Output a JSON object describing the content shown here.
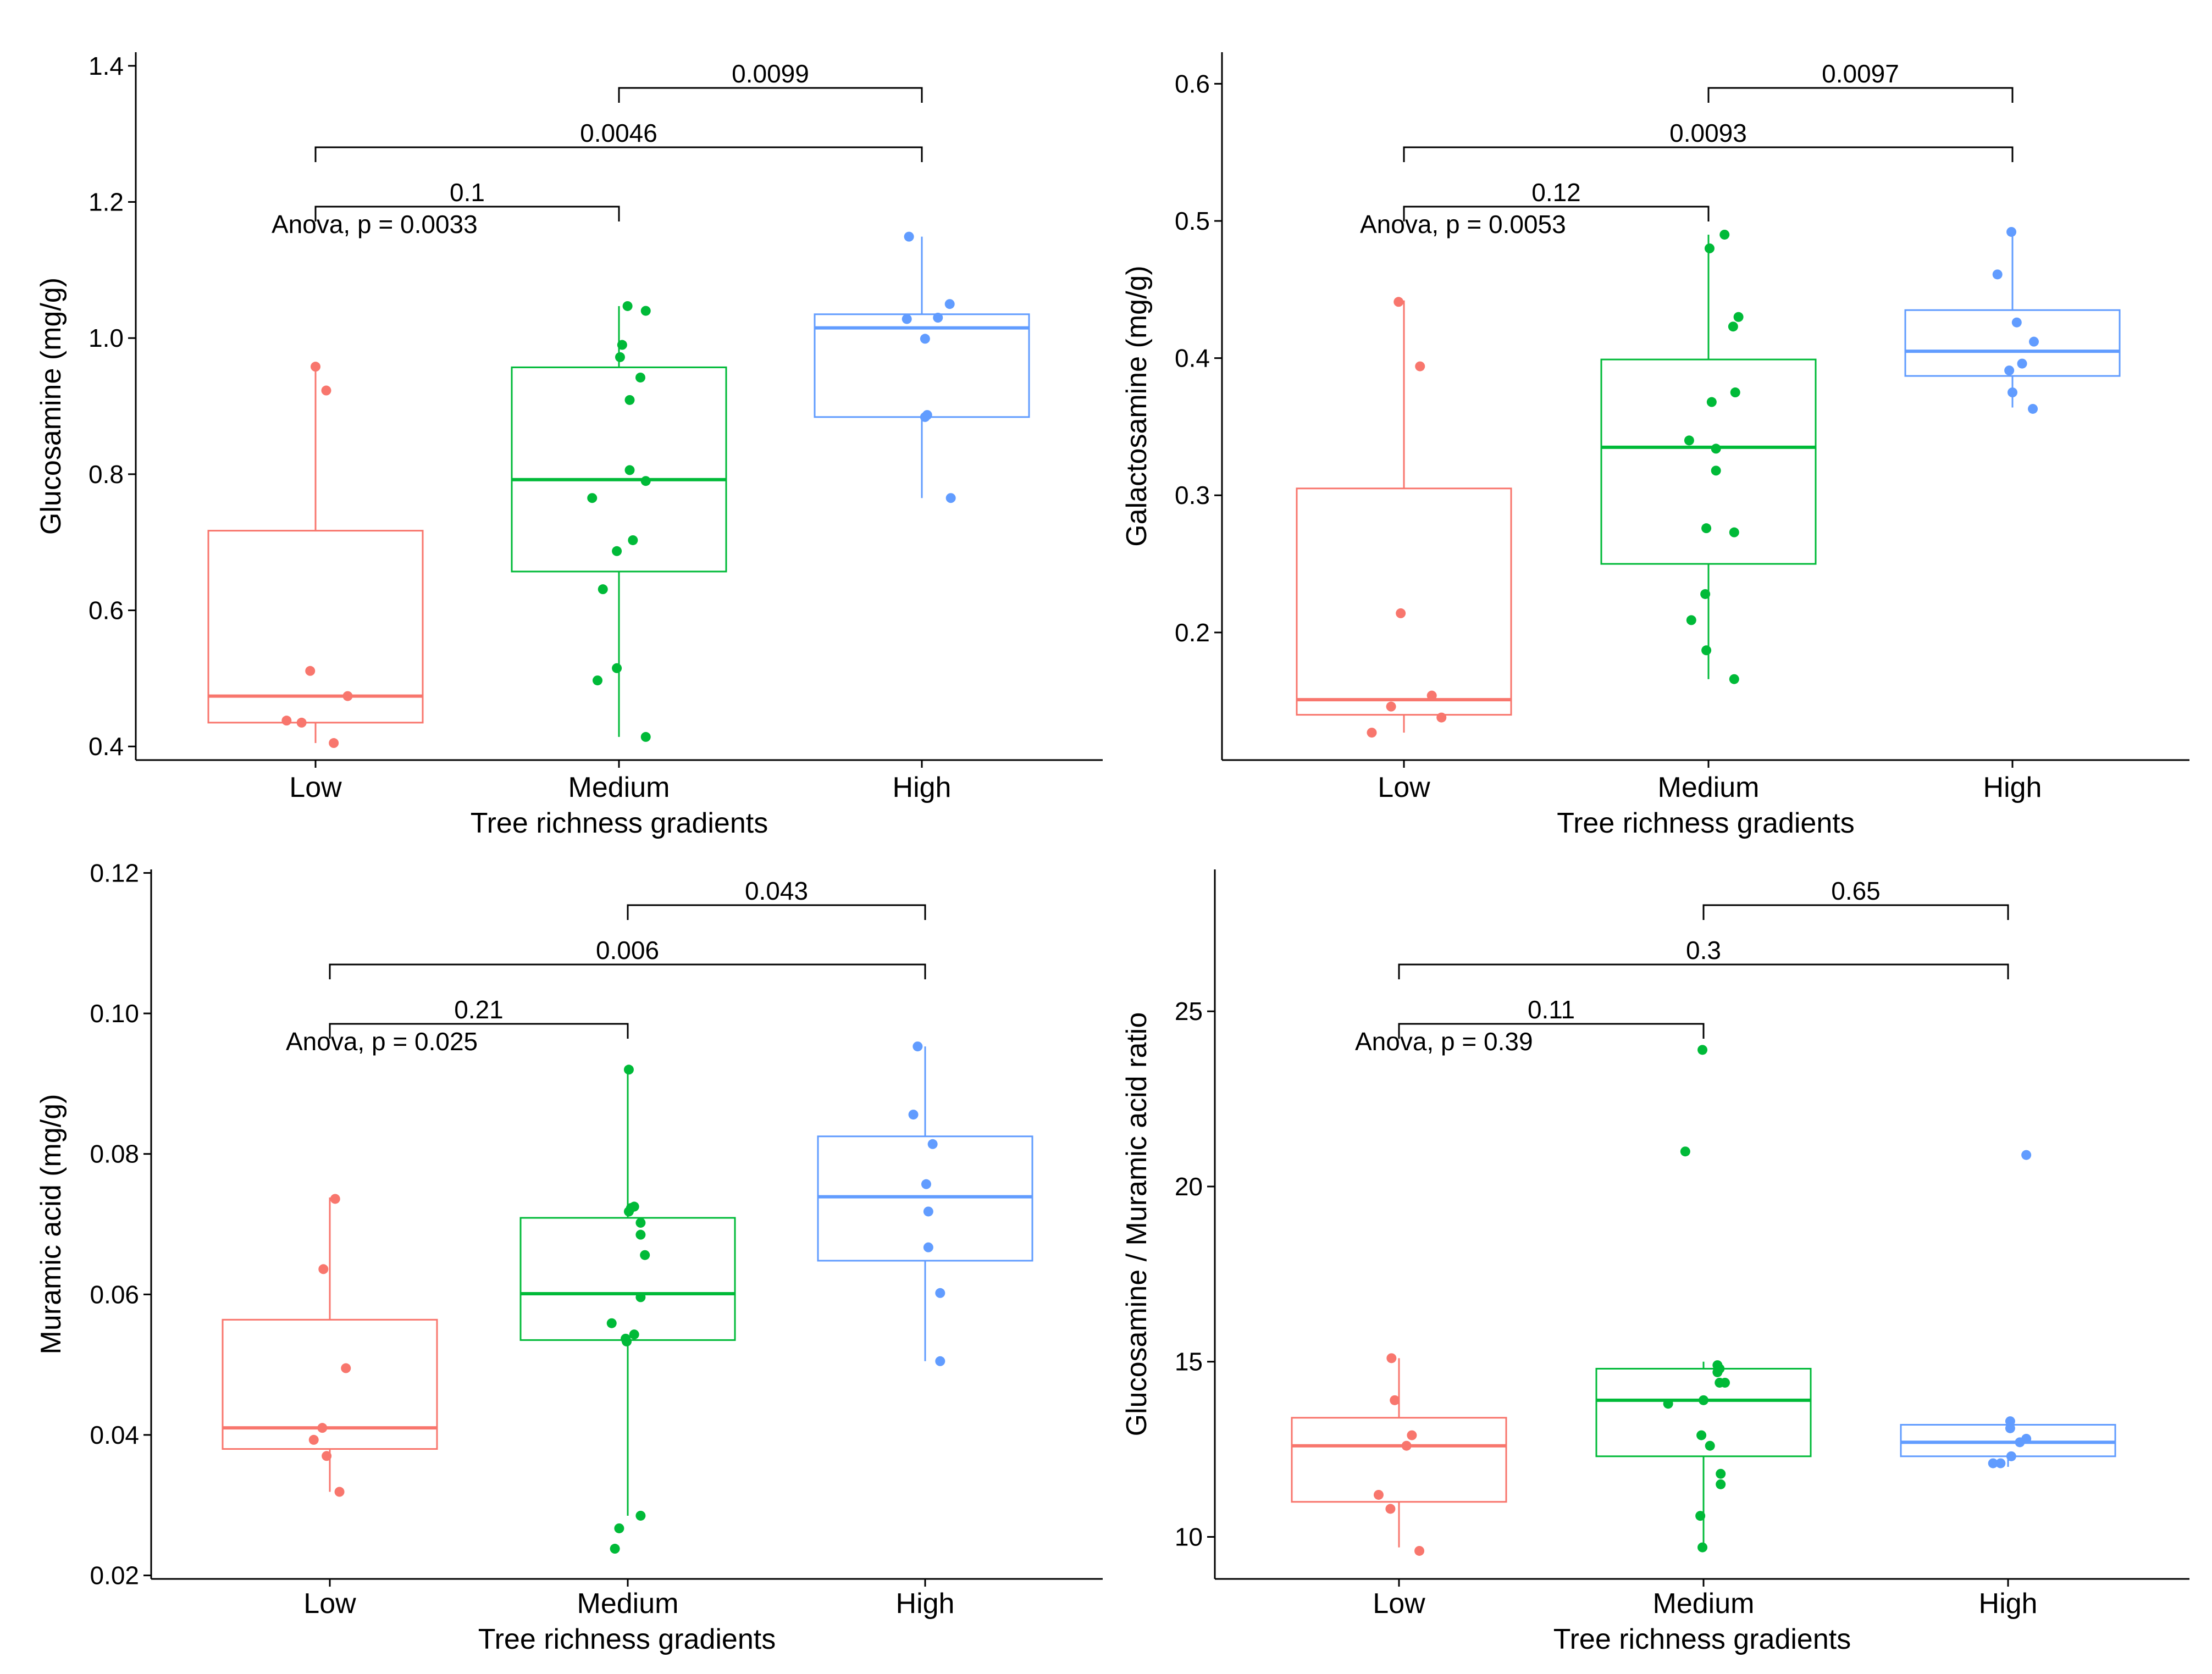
{
  "colors": {
    "Low": "#F8766D",
    "Medium": "#00BA38",
    "High": "#619CFF"
  },
  "chart_data": [
    {
      "id": "glucosamine",
      "type": "box",
      "ylabel": "Glucosamine (mg/g)",
      "xlabel": "Tree richness gradients",
      "categories": [
        "Low",
        "Medium",
        "High"
      ],
      "ylim": [
        0.38,
        1.42
      ],
      "yticks": [
        0.4,
        0.6,
        0.8,
        1.0,
        1.2,
        1.4
      ],
      "ytick_labels": [
        "0.4",
        "0.6",
        "0.8",
        "1.0",
        "1.2",
        "1.4"
      ],
      "anova": "Anova, p = 0.0033",
      "boxes": [
        {
          "group": "Low",
          "whisker_low": 0.405,
          "q1": 0.435,
          "median": 0.474,
          "q3": 0.717,
          "whisker_high": 0.958
        },
        {
          "group": "Medium",
          "whisker_low": 0.414,
          "q1": 0.657,
          "median": 0.792,
          "q3": 0.957,
          "whisker_high": 1.047
        },
        {
          "group": "High",
          "whisker_low": 0.765,
          "q1": 0.884,
          "median": 1.015,
          "q3": 1.035,
          "whisker_high": 1.149
        }
      ],
      "points": [
        {
          "group": "Low",
          "jitter": 0.0,
          "y": 0.958
        },
        {
          "group": "Low",
          "jitter": 0.1,
          "y": 0.923
        },
        {
          "group": "Low",
          "jitter": -0.05,
          "y": 0.511
        },
        {
          "group": "Low",
          "jitter": 0.3,
          "y": 0.474
        },
        {
          "group": "Low",
          "jitter": -0.27,
          "y": 0.438
        },
        {
          "group": "Low",
          "jitter": -0.13,
          "y": 0.435
        },
        {
          "group": "Low",
          "jitter": 0.17,
          "y": 0.405
        },
        {
          "group": "Medium",
          "jitter": 0.08,
          "y": 1.047
        },
        {
          "group": "Medium",
          "jitter": 0.25,
          "y": 1.04
        },
        {
          "group": "Medium",
          "jitter": 0.03,
          "y": 0.99
        },
        {
          "group": "Medium",
          "jitter": 0.01,
          "y": 0.972
        },
        {
          "group": "Medium",
          "jitter": 0.2,
          "y": 0.942
        },
        {
          "group": "Medium",
          "jitter": 0.1,
          "y": 0.909
        },
        {
          "group": "Medium",
          "jitter": 0.1,
          "y": 0.806
        },
        {
          "group": "Medium",
          "jitter": 0.25,
          "y": 0.79
        },
        {
          "group": "Medium",
          "jitter": -0.25,
          "y": 0.765
        },
        {
          "group": "Medium",
          "jitter": 0.13,
          "y": 0.703
        },
        {
          "group": "Medium",
          "jitter": -0.02,
          "y": 0.687
        },
        {
          "group": "Medium",
          "jitter": -0.15,
          "y": 0.631
        },
        {
          "group": "Medium",
          "jitter": -0.02,
          "y": 0.515
        },
        {
          "group": "Medium",
          "jitter": -0.2,
          "y": 0.497
        },
        {
          "group": "Medium",
          "jitter": 0.25,
          "y": 0.414
        },
        {
          "group": "High",
          "jitter": -0.12,
          "y": 1.149
        },
        {
          "group": "High",
          "jitter": 0.26,
          "y": 1.05
        },
        {
          "group": "High",
          "jitter": 0.15,
          "y": 1.03
        },
        {
          "group": "High",
          "jitter": -0.14,
          "y": 1.028
        },
        {
          "group": "High",
          "jitter": 0.03,
          "y": 0.999
        },
        {
          "group": "High",
          "jitter": 0.05,
          "y": 0.887
        },
        {
          "group": "High",
          "jitter": 0.03,
          "y": 0.884
        },
        {
          "group": "High",
          "jitter": 0.27,
          "y": 0.765
        }
      ],
      "comparisons": [
        {
          "from": "Low",
          "to": "Medium",
          "label": "0.1",
          "level": 1
        },
        {
          "from": "Low",
          "to": "High",
          "label": "0.0046",
          "level": 2
        },
        {
          "from": "Medium",
          "to": "High",
          "label": "0.0099",
          "level": 3
        }
      ]
    },
    {
      "id": "galactosamine",
      "type": "box",
      "ylabel": "Galactosamine (mg/g)",
      "xlabel": "Tree richness gradients",
      "categories": [
        "Low",
        "Medium",
        "High"
      ],
      "ylim": [
        0.107,
        0.623
      ],
      "yticks": [
        0.2,
        0.3,
        0.4,
        0.5,
        0.6
      ],
      "ytick_labels": [
        "0.2",
        "0.3",
        "0.4",
        "0.5",
        "0.6"
      ],
      "anova": "Anova, p = 0.0053",
      "boxes": [
        {
          "group": "Low",
          "whisker_low": 0.127,
          "q1": 0.14,
          "median": 0.151,
          "q3": 0.305,
          "whisker_high": 0.442
        },
        {
          "group": "Medium",
          "whisker_low": 0.166,
          "q1": 0.25,
          "median": 0.335,
          "q3": 0.399,
          "whisker_high": 0.49
        },
        {
          "group": "High",
          "whisker_low": 0.364,
          "q1": 0.387,
          "median": 0.405,
          "q3": 0.435,
          "whisker_high": 0.492
        }
      ],
      "points": [
        {
          "group": "Low",
          "jitter": -0.05,
          "y": 0.441
        },
        {
          "group": "Low",
          "jitter": 0.15,
          "y": 0.394
        },
        {
          "group": "Low",
          "jitter": -0.03,
          "y": 0.214
        },
        {
          "group": "Low",
          "jitter": 0.26,
          "y": 0.154
        },
        {
          "group": "Low",
          "jitter": -0.12,
          "y": 0.146
        },
        {
          "group": "Low",
          "jitter": 0.35,
          "y": 0.138
        },
        {
          "group": "Low",
          "jitter": -0.3,
          "y": 0.127
        },
        {
          "group": "Medium",
          "jitter": 0.15,
          "y": 0.49
        },
        {
          "group": "Medium",
          "jitter": 0.01,
          "y": 0.48
        },
        {
          "group": "Medium",
          "jitter": 0.28,
          "y": 0.43
        },
        {
          "group": "Medium",
          "jitter": 0.23,
          "y": 0.423
        },
        {
          "group": "Medium",
          "jitter": 0.25,
          "y": 0.375
        },
        {
          "group": "Medium",
          "jitter": 0.03,
          "y": 0.368
        },
        {
          "group": "Medium",
          "jitter": -0.18,
          "y": 0.34
        },
        {
          "group": "Medium",
          "jitter": 0.07,
          "y": 0.334
        },
        {
          "group": "Medium",
          "jitter": 0.07,
          "y": 0.318
        },
        {
          "group": "Medium",
          "jitter": -0.02,
          "y": 0.276
        },
        {
          "group": "Medium",
          "jitter": 0.24,
          "y": 0.273
        },
        {
          "group": "Medium",
          "jitter": -0.03,
          "y": 0.228
        },
        {
          "group": "Medium",
          "jitter": -0.16,
          "y": 0.209
        },
        {
          "group": "Medium",
          "jitter": -0.02,
          "y": 0.187
        },
        {
          "group": "Medium",
          "jitter": 0.24,
          "y": 0.166
        },
        {
          "group": "High",
          "jitter": -0.01,
          "y": 0.492
        },
        {
          "group": "High",
          "jitter": -0.14,
          "y": 0.461
        },
        {
          "group": "High",
          "jitter": 0.04,
          "y": 0.426
        },
        {
          "group": "High",
          "jitter": 0.2,
          "y": 0.412
        },
        {
          "group": "High",
          "jitter": 0.09,
          "y": 0.396
        },
        {
          "group": "High",
          "jitter": -0.03,
          "y": 0.391
        },
        {
          "group": "High",
          "jitter": 0.0,
          "y": 0.375
        },
        {
          "group": "High",
          "jitter": 0.19,
          "y": 0.363
        }
      ],
      "comparisons": [
        {
          "from": "Low",
          "to": "Medium",
          "label": "0.12",
          "level": 1
        },
        {
          "from": "Low",
          "to": "High",
          "label": "0.0093",
          "level": 2
        },
        {
          "from": "Medium",
          "to": "High",
          "label": "0.0097",
          "level": 3
        }
      ]
    },
    {
      "id": "muramic",
      "type": "box",
      "ylabel": "Muramic acid (mg/g)",
      "xlabel": "Tree richness gradients",
      "categories": [
        "Low",
        "Medium",
        "High"
      ],
      "ylim": [
        0.0195,
        0.1205
      ],
      "yticks": [
        0.02,
        0.04,
        0.06,
        0.08,
        0.1,
        0.12
      ],
      "ytick_labels": [
        "0.02",
        "0.04",
        "0.06",
        "0.08",
        "0.10",
        "0.12"
      ],
      "anova": "Anova, p = 0.025",
      "boxes": [
        {
          "group": "Low",
          "whisker_low": 0.0319,
          "q1": 0.038,
          "median": 0.041,
          "q3": 0.0564,
          "whisker_high": 0.0738
        },
        {
          "group": "Medium",
          "whisker_low": 0.0285,
          "q1": 0.0535,
          "median": 0.0601,
          "q3": 0.0709,
          "whisker_high": 0.092
        },
        {
          "group": "High",
          "whisker_low": 0.0505,
          "q1": 0.0648,
          "median": 0.0739,
          "q3": 0.0825,
          "whisker_high": 0.0953
        }
      ],
      "points": [
        {
          "group": "Low",
          "jitter": 0.05,
          "y": 0.0736
        },
        {
          "group": "Low",
          "jitter": -0.06,
          "y": 0.0636
        },
        {
          "group": "Low",
          "jitter": 0.15,
          "y": 0.0495
        },
        {
          "group": "Low",
          "jitter": -0.07,
          "y": 0.041
        },
        {
          "group": "Low",
          "jitter": -0.15,
          "y": 0.0393
        },
        {
          "group": "Low",
          "jitter": -0.03,
          "y": 0.037
        },
        {
          "group": "Low",
          "jitter": 0.09,
          "y": 0.0319
        },
        {
          "group": "Medium",
          "jitter": 0.01,
          "y": 0.092
        },
        {
          "group": "Medium",
          "jitter": 0.06,
          "y": 0.0725
        },
        {
          "group": "Medium",
          "jitter": 0.03,
          "y": 0.0723
        },
        {
          "group": "Medium",
          "jitter": 0.01,
          "y": 0.0718
        },
        {
          "group": "Medium",
          "jitter": 0.12,
          "y": 0.0702
        },
        {
          "group": "Medium",
          "jitter": 0.12,
          "y": 0.0685
        },
        {
          "group": "Medium",
          "jitter": 0.16,
          "y": 0.0656
        },
        {
          "group": "Medium",
          "jitter": 0.12,
          "y": 0.0596
        },
        {
          "group": "Medium",
          "jitter": -0.15,
          "y": 0.0559
        },
        {
          "group": "Medium",
          "jitter": 0.06,
          "y": 0.0543
        },
        {
          "group": "Medium",
          "jitter": -0.02,
          "y": 0.0537
        },
        {
          "group": "Medium",
          "jitter": -0.01,
          "y": 0.0533
        },
        {
          "group": "Medium",
          "jitter": 0.12,
          "y": 0.0285
        },
        {
          "group": "Medium",
          "jitter": -0.08,
          "y": 0.0267
        },
        {
          "group": "Medium",
          "jitter": -0.12,
          "y": 0.0238
        },
        {
          "group": "High",
          "jitter": -0.07,
          "y": 0.0953
        },
        {
          "group": "High",
          "jitter": -0.11,
          "y": 0.0856
        },
        {
          "group": "High",
          "jitter": 0.07,
          "y": 0.0814
        },
        {
          "group": "High",
          "jitter": 0.01,
          "y": 0.0757
        },
        {
          "group": "High",
          "jitter": 0.03,
          "y": 0.0718
        },
        {
          "group": "High",
          "jitter": 0.03,
          "y": 0.0667
        },
        {
          "group": "High",
          "jitter": 0.14,
          "y": 0.0602
        },
        {
          "group": "High",
          "jitter": 0.14,
          "y": 0.0505
        }
      ],
      "comparisons": [
        {
          "from": "Low",
          "to": "Medium",
          "label": "0.21",
          "level": 1
        },
        {
          "from": "Low",
          "to": "High",
          "label": "0.006",
          "level": 2
        },
        {
          "from": "Medium",
          "to": "High",
          "label": "0.043",
          "level": 3
        }
      ]
    },
    {
      "id": "ratio",
      "type": "box",
      "ylabel": "Glucosamine / Muramic acid ratio",
      "xlabel": "Tree richness gradients",
      "categories": [
        "Low",
        "Medium",
        "High"
      ],
      "ylim": [
        8.8,
        29.05
      ],
      "yticks": [
        10,
        15,
        20,
        25
      ],
      "ytick_labels": [
        "10",
        "15",
        "20",
        "25"
      ],
      "anova": "Anova, p = 0.39",
      "boxes": [
        {
          "group": "Low",
          "whisker_low": 9.7,
          "q1": 11.0,
          "median": 12.6,
          "q3": 13.4,
          "whisker_high": 15.1
        },
        {
          "group": "Medium",
          "whisker_low": 9.8,
          "q1": 12.3,
          "median": 13.9,
          "q3": 14.8,
          "whisker_high": 15.0
        },
        {
          "group": "High",
          "whisker_low": 12.0,
          "q1": 12.3,
          "median": 12.7,
          "q3": 13.2,
          "whisker_high": 13.3
        }
      ],
      "points": [
        {
          "group": "Low",
          "jitter": -0.07,
          "y": 15.1
        },
        {
          "group": "Low",
          "jitter": -0.04,
          "y": 13.9
        },
        {
          "group": "Low",
          "jitter": 0.12,
          "y": 12.9
        },
        {
          "group": "Low",
          "jitter": 0.07,
          "y": 12.6
        },
        {
          "group": "Low",
          "jitter": -0.19,
          "y": 11.2
        },
        {
          "group": "Low",
          "jitter": -0.08,
          "y": 10.8
        },
        {
          "group": "Low",
          "jitter": 0.19,
          "y": 9.6
        },
        {
          "group": "Medium",
          "jitter": -0.01,
          "y": 23.9
        },
        {
          "group": "Medium",
          "jitter": -0.17,
          "y": 21.0
        },
        {
          "group": "Medium",
          "jitter": 0.13,
          "y": 14.9
        },
        {
          "group": "Medium",
          "jitter": 0.15,
          "y": 14.8
        },
        {
          "group": "Medium",
          "jitter": 0.13,
          "y": 14.7
        },
        {
          "group": "Medium",
          "jitter": 0.15,
          "y": 14.4
        },
        {
          "group": "Medium",
          "jitter": 0.2,
          "y": 14.4
        },
        {
          "group": "Medium",
          "jitter": 0.0,
          "y": 13.9
        },
        {
          "group": "Medium",
          "jitter": -0.33,
          "y": 13.8
        },
        {
          "group": "Medium",
          "jitter": -0.02,
          "y": 12.9
        },
        {
          "group": "Medium",
          "jitter": 0.06,
          "y": 12.6
        },
        {
          "group": "Medium",
          "jitter": 0.16,
          "y": 11.8
        },
        {
          "group": "Medium",
          "jitter": 0.16,
          "y": 11.5
        },
        {
          "group": "Medium",
          "jitter": -0.03,
          "y": 10.6
        },
        {
          "group": "Medium",
          "jitter": -0.01,
          "y": 9.7
        },
        {
          "group": "High",
          "jitter": 0.17,
          "y": 20.9
        },
        {
          "group": "High",
          "jitter": 0.02,
          "y": 13.3
        },
        {
          "group": "High",
          "jitter": 0.02,
          "y": 13.1
        },
        {
          "group": "High",
          "jitter": 0.17,
          "y": 12.8
        },
        {
          "group": "High",
          "jitter": 0.11,
          "y": 12.7
        },
        {
          "group": "High",
          "jitter": 0.03,
          "y": 12.3
        },
        {
          "group": "High",
          "jitter": -0.07,
          "y": 12.1
        },
        {
          "group": "High",
          "jitter": -0.14,
          "y": 12.1
        }
      ],
      "comparisons": [
        {
          "from": "Low",
          "to": "Medium",
          "label": "0.11",
          "level": 1
        },
        {
          "from": "Low",
          "to": "High",
          "label": "0.3",
          "level": 2
        },
        {
          "from": "Medium",
          "to": "High",
          "label": "0.65",
          "level": 3
        }
      ]
    }
  ]
}
